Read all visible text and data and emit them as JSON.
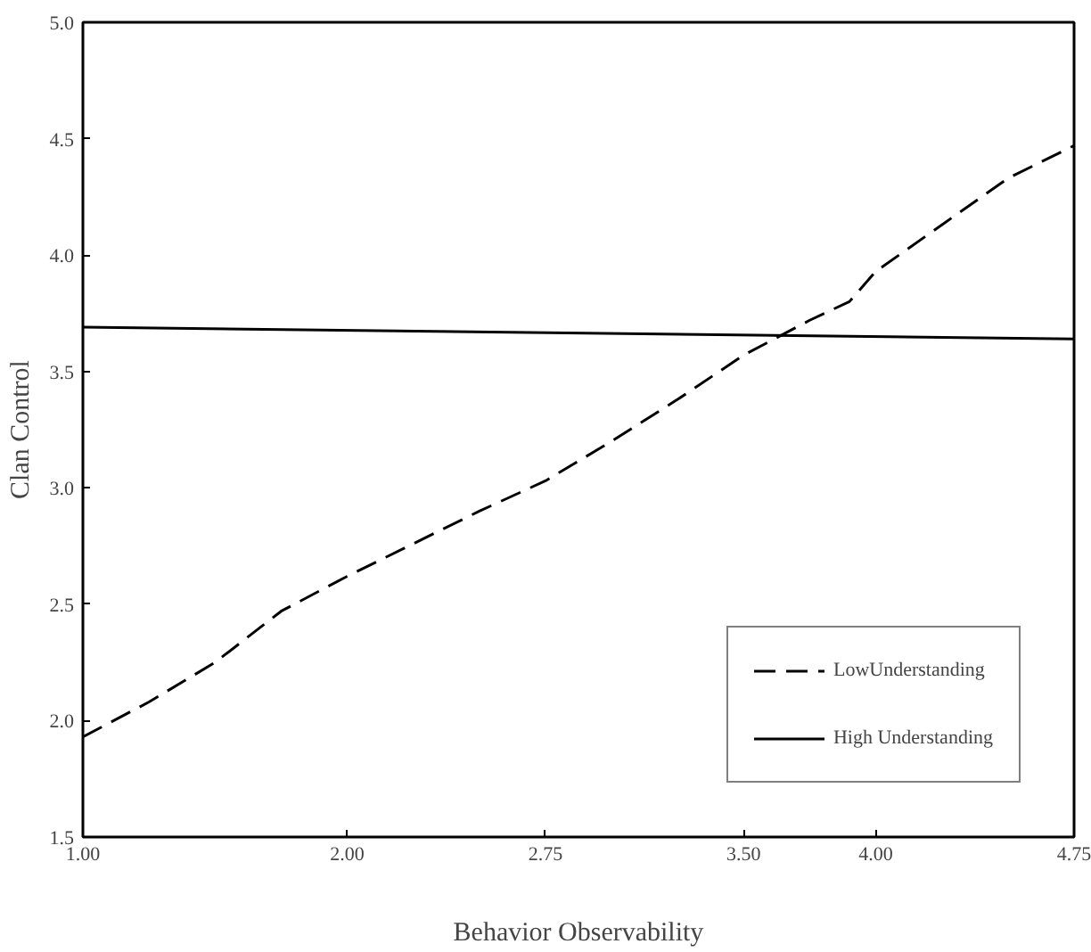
{
  "chart_data": {
    "type": "line",
    "xlabel": "Behavior Observability",
    "ylabel": "Clan Control",
    "x": [
      1.0,
      1.25,
      1.5,
      1.75,
      2.0,
      2.25,
      2.5,
      2.75,
      3.0,
      3.25,
      3.5,
      3.75,
      3.9,
      4.0,
      4.25,
      4.5,
      4.75
    ],
    "series": [
      {
        "name": "LowUnderstanding",
        "color": "#000000",
        "line_style": "dashed",
        "values": [
          1.93,
          2.08,
          2.25,
          2.47,
          2.62,
          2.76,
          2.9,
          3.03,
          3.2,
          3.38,
          3.57,
          3.72,
          3.8,
          3.93,
          4.13,
          4.33,
          4.47
        ]
      },
      {
        "name": "High Understanding",
        "color": "#000000",
        "line_style": "solid",
        "x": [
          1.0,
          4.75
        ],
        "values": [
          3.69,
          3.64
        ]
      }
    ],
    "xlim": [
      1.0,
      4.75
    ],
    "ylim": [
      1.5,
      5.0
    ],
    "xticks": [
      {
        "value": 1.0,
        "label": "1.00"
      },
      {
        "value": 2.0,
        "label": "2.00"
      },
      {
        "value": 2.75,
        "label": "2.75"
      },
      {
        "value": 3.5,
        "label": "3.50"
      },
      {
        "value": 4.0,
        "label": "4.00"
      },
      {
        "value": 4.75,
        "label": "4.75"
      }
    ],
    "yticks": [
      {
        "value": 1.5,
        "label": "1.5"
      },
      {
        "value": 2.0,
        "label": "2.0"
      },
      {
        "value": 2.5,
        "label": "2.5"
      },
      {
        "value": 3.0,
        "label": "3.0"
      },
      {
        "value": 3.5,
        "label": "3.5"
      },
      {
        "value": 4.0,
        "label": "4.0"
      },
      {
        "value": 4.5,
        "label": "4.5"
      },
      {
        "value": 5.0,
        "label": "5.0"
      }
    ],
    "grid": false,
    "legend": "bottom right",
    "marker": "none"
  }
}
